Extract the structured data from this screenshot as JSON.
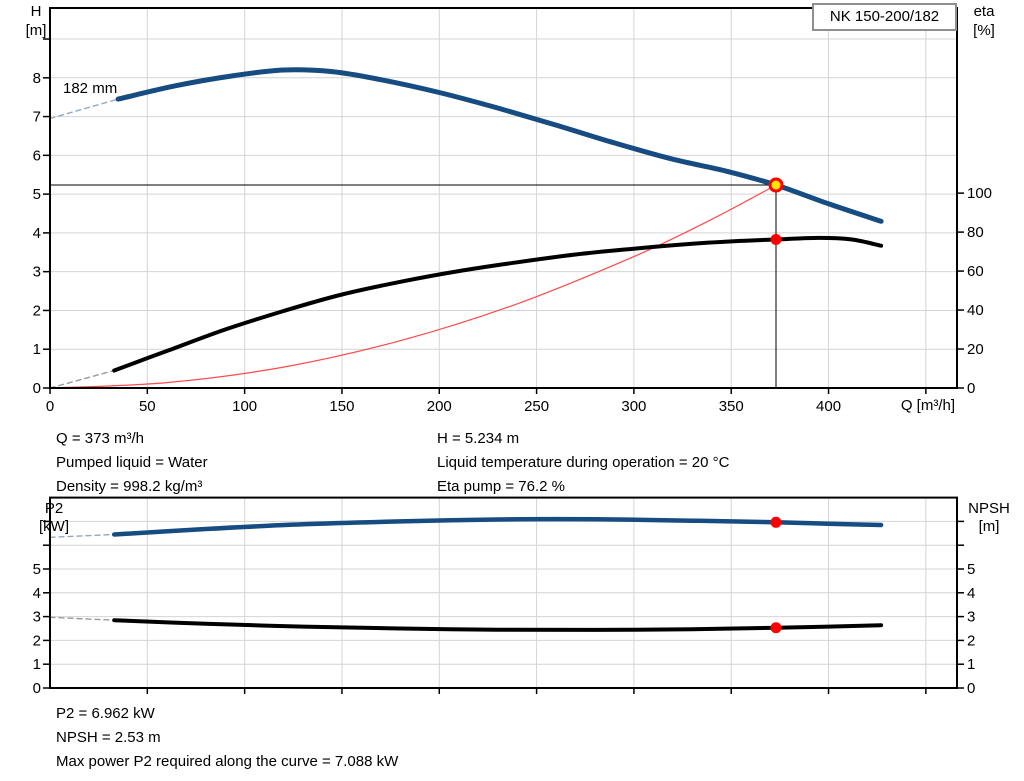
{
  "pump": {
    "model": "NK 150-200/182",
    "impeller_label": "182 mm"
  },
  "colors": {
    "curve_blue": "#164c82",
    "curve_black": "#000000",
    "system_red": "#ff4a4a",
    "marker_red": "#ff0000",
    "marker_yellow": "#ffe600",
    "dash_blue": "#93a9c3",
    "dash_gray": "#9a9a9a",
    "grid": "#d4d4d4",
    "axis": "#000000"
  },
  "operating_conditions": {
    "left": [
      "Q = 373 m³/h",
      "Pumped liquid = Water",
      "Density = 998.2 kg/m³"
    ],
    "right": [
      "H = 5.234 m",
      "Liquid temperature during operation = 20 °C",
      "Eta pump = 76.2 %"
    ]
  },
  "results": [
    "P2 = 6.962 kW",
    "NPSH = 2.53 m",
    "Max power P2 required along the curve = 7.088 kW"
  ],
  "chart_data": [
    {
      "type": "line",
      "name": "performance-curve-chart",
      "title": "NK 150-200/182",
      "x_axis": {
        "label": "Q [m³/h]",
        "min": 0,
        "max": 466,
        "ticks_labeled": [
          0,
          50,
          100,
          150,
          200,
          250,
          300,
          350,
          400
        ],
        "ticks_unlabeled": [
          450
        ],
        "grid": [
          50,
          100,
          150,
          200,
          250,
          300,
          350,
          400,
          450
        ]
      },
      "y_left": {
        "label": "H",
        "unit": "[m]",
        "min": 0,
        "max": 9.8,
        "ticks_labeled": [
          0,
          1,
          2,
          3,
          4,
          5,
          6,
          7,
          8
        ],
        "ticks_unlabeled": [
          9
        ],
        "grid": [
          1,
          2,
          3,
          4,
          5,
          6,
          7,
          8,
          9
        ]
      },
      "y_right": {
        "label": "eta",
        "unit": "[%]",
        "min": 0,
        "max": 195,
        "ticks_labeled": [
          0,
          20,
          40,
          60,
          80,
          100
        ],
        "ticks_unlabeled": []
      },
      "duty_point": {
        "q": 373,
        "h": 5.234,
        "eta": 76.2
      },
      "series": [
        {
          "name": "head-reference-line",
          "axis": "left",
          "style": "solid",
          "width": 1,
          "color": "axis",
          "smooth": false,
          "points": [
            [
              0,
              5.234
            ],
            [
              373,
              5.234
            ]
          ]
        },
        {
          "name": "flow-reference-line",
          "axis": "left",
          "style": "solid",
          "width": 1,
          "color": "axis",
          "smooth": false,
          "points": [
            [
              373,
              0
            ],
            [
              373,
              5.234
            ]
          ]
        },
        {
          "name": "system-curve",
          "axis": "left",
          "style": "solid",
          "width": 1.2,
          "color": "system_red",
          "smooth": true,
          "points": [
            [
              0,
              0
            ],
            [
              60,
              0.14
            ],
            [
              120,
              0.54
            ],
            [
              180,
              1.22
            ],
            [
              240,
              2.17
            ],
            [
              300,
              3.39
            ],
            [
              340,
              4.35
            ],
            [
              373,
              5.234
            ]
          ]
        },
        {
          "name": "efficiency-curve-extrapolated",
          "axis": "right",
          "style": "dashed",
          "width": 1.4,
          "color": "dash_gray",
          "smooth": false,
          "points": [
            [
              0,
              0
            ],
            [
              33,
              9
            ]
          ]
        },
        {
          "name": "efficiency-curve",
          "axis": "right",
          "style": "solid",
          "width": 4,
          "color": "curve_black",
          "smooth": true,
          "points": [
            [
              33,
              9
            ],
            [
              60,
              19
            ],
            [
              90,
              30
            ],
            [
              120,
              39.5
            ],
            [
              150,
              48
            ],
            [
              180,
              54.5
            ],
            [
              210,
              60
            ],
            [
              240,
              64.5
            ],
            [
              270,
              68.5
            ],
            [
              300,
              71.5
            ],
            [
              330,
              74
            ],
            [
              355,
              75.5
            ],
            [
              373,
              76.2
            ],
            [
              395,
              77
            ],
            [
              412,
              76.2
            ],
            [
              427,
              73
            ]
          ]
        },
        {
          "name": "pump-curve-extrapolated",
          "axis": "left",
          "style": "dashed",
          "width": 1.4,
          "color": "dash_blue",
          "smooth": false,
          "points": [
            [
              0,
              6.95
            ],
            [
              35,
              7.45
            ]
          ]
        },
        {
          "name": "pump-curve",
          "axis": "left",
          "style": "solid",
          "width": 5,
          "color": "curve_blue",
          "smooth": true,
          "points": [
            [
              35,
              7.45
            ],
            [
              65,
              7.8
            ],
            [
              95,
              8.06
            ],
            [
              120,
              8.2
            ],
            [
              145,
              8.16
            ],
            [
              170,
              7.95
            ],
            [
              200,
              7.62
            ],
            [
              230,
              7.22
            ],
            [
              260,
              6.78
            ],
            [
              290,
              6.32
            ],
            [
              320,
              5.9
            ],
            [
              347,
              5.6
            ],
            [
              373,
              5.234
            ],
            [
              400,
              4.75
            ],
            [
              427,
              4.3
            ]
          ]
        }
      ],
      "markers": [
        {
          "name": "efficiency-point",
          "axis": "right",
          "q": 373,
          "v": 76.2,
          "r": 5.5,
          "fill": "marker_red",
          "interactable": false
        },
        {
          "name": "duty-point",
          "axis": "left",
          "q": 373,
          "v": 5.234,
          "r": 6,
          "fill": "marker_yellow",
          "stroke": "marker_red",
          "stroke_width": 3,
          "interactable": true
        }
      ]
    },
    {
      "type": "line",
      "name": "power-npsh-chart",
      "x_axis": {
        "label": "",
        "min": 0,
        "max": 466,
        "ticks_labeled": [],
        "ticks_unlabeled": [
          50,
          100,
          150,
          200,
          250,
          300,
          350,
          400,
          450
        ],
        "grid": [
          50,
          100,
          150,
          200,
          250,
          300,
          350,
          400,
          450
        ]
      },
      "y_left": {
        "label": "P2",
        "unit": "[kW]",
        "min": 0,
        "max": 8,
        "ticks_labeled": [
          0,
          1,
          2,
          3,
          4,
          5
        ],
        "ticks_unlabeled": [
          6,
          7
        ],
        "grid": [
          1,
          2,
          3,
          4,
          5,
          6,
          7
        ]
      },
      "y_right": {
        "label": "NPSH",
        "unit": "[m]",
        "min": 0,
        "max": 8,
        "ticks_labeled": [
          0,
          1,
          2,
          3,
          4,
          5
        ],
        "ticks_unlabeled": [
          6,
          7
        ]
      },
      "duty_point": {
        "q": 373,
        "p2": 6.962,
        "npsh": 2.53
      },
      "series": [
        {
          "name": "p2-curve-extrapolated",
          "axis": "left",
          "style": "dashed",
          "width": 1.4,
          "color": "dash_blue",
          "smooth": false,
          "points": [
            [
              0,
              6.33
            ],
            [
              33,
              6.45
            ]
          ]
        },
        {
          "name": "p2-curve",
          "axis": "left",
          "style": "solid",
          "width": 4.5,
          "color": "curve_blue",
          "smooth": true,
          "points": [
            [
              33,
              6.45
            ],
            [
              80,
              6.68
            ],
            [
              130,
              6.88
            ],
            [
              180,
              7.0
            ],
            [
              230,
              7.08
            ],
            [
              280,
              7.09
            ],
            [
              330,
              7.03
            ],
            [
              373,
              6.962
            ],
            [
              400,
              6.9
            ],
            [
              427,
              6.85
            ]
          ]
        },
        {
          "name": "npsh-curve-extrapolated",
          "axis": "left",
          "style": "dashed",
          "width": 1.4,
          "color": "dash_gray",
          "smooth": false,
          "points": [
            [
              0,
              2.97
            ],
            [
              33,
              2.85
            ]
          ]
        },
        {
          "name": "npsh-curve",
          "axis": "left",
          "style": "solid",
          "width": 4,
          "color": "curve_black",
          "smooth": true,
          "points": [
            [
              33,
              2.85
            ],
            [
              80,
              2.7
            ],
            [
              130,
              2.58
            ],
            [
              180,
              2.5
            ],
            [
              230,
              2.45
            ],
            [
              280,
              2.44
            ],
            [
              330,
              2.47
            ],
            [
              373,
              2.53
            ],
            [
              400,
              2.58
            ],
            [
              427,
              2.64
            ]
          ]
        }
      ],
      "markers": [
        {
          "name": "p2-point",
          "axis": "left",
          "q": 373,
          "v": 6.962,
          "r": 5.5,
          "fill": "marker_red",
          "interactable": false
        },
        {
          "name": "npsh-point",
          "axis": "right",
          "q": 373,
          "v": 2.53,
          "r": 5.5,
          "fill": "marker_red",
          "interactable": false
        }
      ]
    }
  ]
}
